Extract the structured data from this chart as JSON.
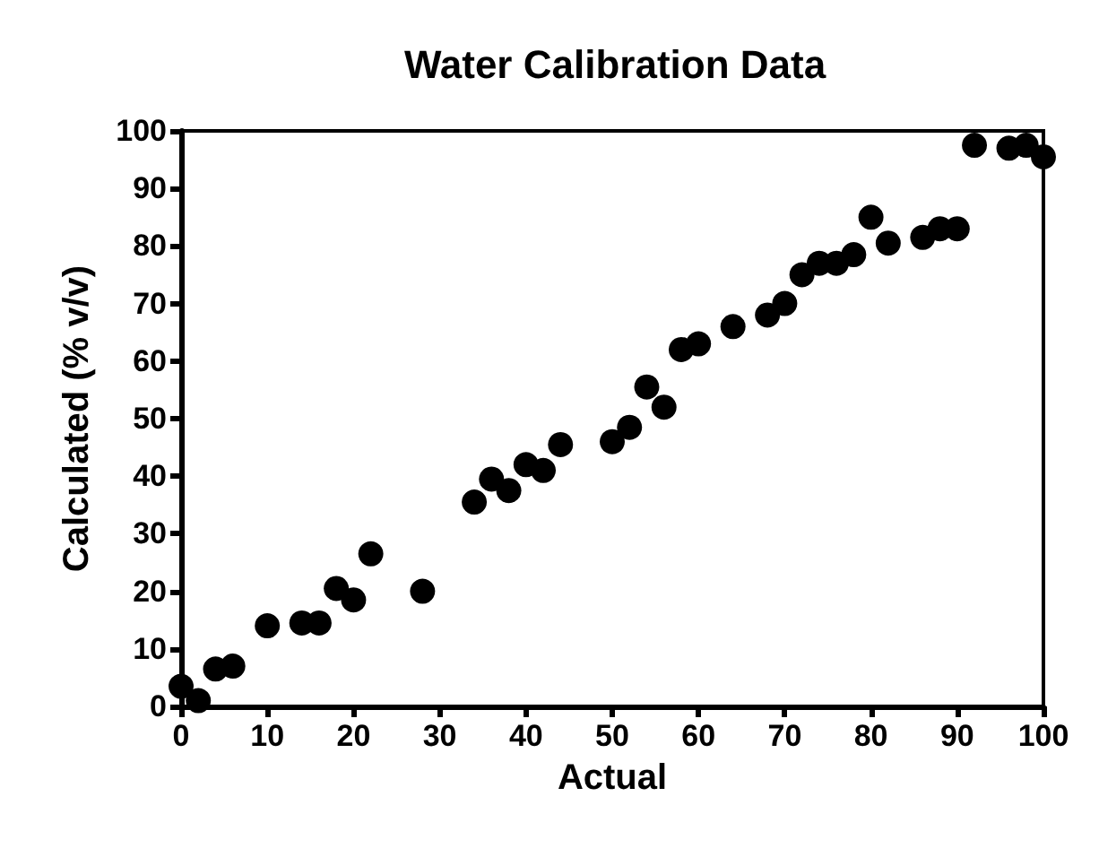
{
  "chart_data": {
    "type": "scatter",
    "title": "Water Calibration Data",
    "xlabel": "Actual",
    "ylabel": "Calculated (% v/v)",
    "x": [
      0,
      2,
      4,
      6,
      10,
      14,
      16,
      18,
      20,
      22,
      28,
      34,
      36,
      38,
      40,
      42,
      44,
      50,
      52,
      54,
      56,
      58,
      60,
      64,
      68,
      70,
      72,
      74,
      76,
      78,
      80,
      82,
      86,
      88,
      90,
      92,
      96,
      98,
      100
    ],
    "values": [
      3.5,
      1,
      6.5,
      7,
      14,
      14.5,
      14.5,
      20.5,
      18.5,
      26.5,
      20,
      35.5,
      39.5,
      37.5,
      42,
      41,
      45.5,
      46,
      48.5,
      55.5,
      52,
      62,
      63,
      66,
      68,
      70,
      75,
      77,
      77,
      78.5,
      85,
      80.5,
      81.5,
      83,
      83,
      97.5,
      97,
      97.5,
      95.5
    ],
    "color": "#000000",
    "marker": "circle",
    "xlim": [
      0,
      100
    ],
    "xticks": [
      0,
      10,
      20,
      30,
      40,
      50,
      60,
      70,
      80,
      90,
      100
    ],
    "ylim": [
      0,
      100
    ],
    "yticks": [
      0,
      10,
      20,
      30,
      40,
      50,
      60,
      70,
      80,
      90,
      100
    ],
    "grid": false
  }
}
